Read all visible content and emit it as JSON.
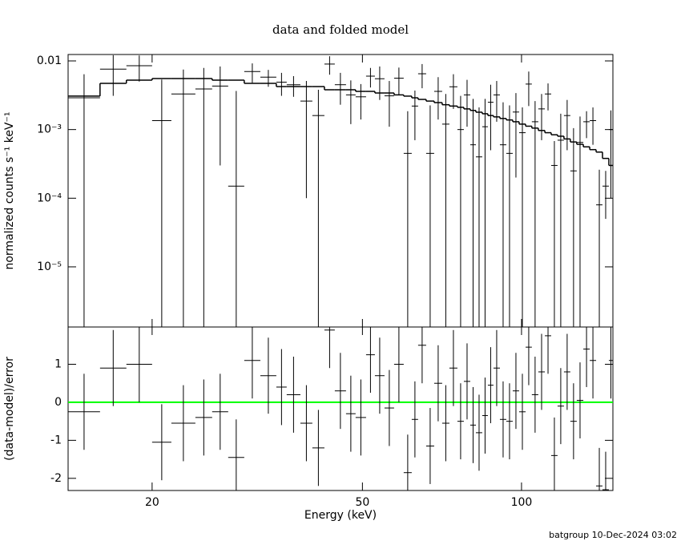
{
  "chart_data": {
    "type": "spectrum",
    "title": "data and folded model",
    "xlabel": "Energy (keV)",
    "footer": "batgroup 10-Dec-2024 03:02",
    "log_x": true,
    "xlim": [
      13.87,
      148.9
    ],
    "xticks": [
      20,
      50,
      100
    ],
    "bins": [
      13.87,
      15.94,
      17.88,
      20.0,
      21.75,
      24.15,
      25.98,
      27.86,
      29.88,
      32.05,
      34.36,
      35.95,
      38.16,
      40.2,
      42.37,
      44.33,
      46.55,
      48.54,
      50.8,
      52.79,
      55.05,
      57.4,
      59.85,
      61.98,
      63.73,
      66.0,
      68.35,
      70.77,
      73.04,
      75.63,
      77.78,
      79.99,
      81.97,
      84.28,
      86.36,
      88.5,
      91.01,
      93.59,
      96.24,
      98.96,
      101.8,
      104.6,
      107.6,
      110.7,
      113.8,
      117.0,
      120.3,
      123.7,
      127.2,
      130.9,
      134.6,
      138.4,
      142.3,
      146.3,
      148.9
    ],
    "panels": [
      {
        "kind": "spectrum",
        "ylabel": "normalized counts s⁻¹ keV⁻¹",
        "log_y": true,
        "ylim": [
          1.33e-06,
          0.0124
        ],
        "yticks": [
          0.01,
          {
            "value": 0.001,
            "label": "10⁻³"
          },
          {
            "value": 0.0001,
            "label": "10⁻⁴"
          },
          {
            "value": 1e-05,
            "label": "10⁻⁵"
          }
        ],
        "data": {
          "color": "#000000",
          "values": [
            0.0029,
            0.0076,
            0.0085,
            0.00135,
            0.0033,
            0.0039,
            0.0043,
            0.00015,
            0.007,
            0.0058,
            0.0049,
            0.0045,
            0.0026,
            0.0016,
            0.009,
            0.0045,
            0.0032,
            0.003,
            0.006,
            0.0055,
            0.0031,
            0.0056,
            0.00045,
            0.0022,
            0.0065,
            0.00045,
            0.0036,
            0.0012,
            0.0042,
            0.001,
            0.0032,
            0.0006,
            0.0004,
            0.0011,
            0.0025,
            0.0032,
            0.0006,
            0.00045,
            0.0018,
            0.0009,
            0.0046,
            0.0013,
            0.002,
            0.0033,
            0.0003,
            0.0007,
            0.0016,
            0.00025,
            0.00065,
            0.0013,
            0.00135,
            8e-05,
            0.00015,
            0.001
          ],
          "errors": [
            0.0035,
            0.0045,
            0.0035,
            0.004,
            0.0042,
            0.004,
            0.004,
            0.0035,
            0.0022,
            0.0016,
            0.0018,
            0.0015,
            0.0025,
            0.0022,
            0.0027,
            0.0022,
            0.002,
            0.0016,
            0.0019,
            0.0028,
            0.002,
            0.0024,
            0.0014,
            0.0015,
            0.0025,
            0.0018,
            0.0022,
            0.0021,
            0.0022,
            0.0021,
            0.0021,
            0.0022,
            0.0017,
            0.0017,
            0.002,
            0.0019,
            0.0019,
            0.0018,
            0.0016,
            0.0012,
            0.0024,
            0.0013,
            0.0013,
            0.0014,
            0.00038,
            0.001,
            0.0011,
            0.0008,
            0.0009,
            0.00055,
            0.00075,
            0.00018,
            0.0001,
            0.0009
          ]
        },
        "model": {
          "color": "#000000",
          "values": [
            0.00307,
            0.00471,
            0.00525,
            0.00554,
            0.00554,
            0.00554,
            0.00525,
            0.00525,
            0.00471,
            0.00471,
            0.00423,
            0.00423,
            0.00423,
            0.00423,
            0.0038,
            0.0038,
            0.0038,
            0.0036,
            0.0036,
            0.00341,
            0.00341,
            0.0032,
            0.00307,
            0.0029,
            0.00275,
            0.0026,
            0.00247,
            0.0023,
            0.0022,
            0.00211,
            0.002,
            0.0019,
            0.00179,
            0.0017,
            0.0016,
            0.00153,
            0.00145,
            0.00138,
            0.0013,
            0.0012,
            0.00112,
            0.00105,
            0.00097,
            0.0009,
            0.00084,
            0.0008,
            0.00073,
            0.00066,
            0.00061,
            0.00056,
            0.00051,
            0.00047,
            0.00038,
            0.0003
          ]
        }
      },
      {
        "kind": "residual",
        "ylabel": "(data-model)/error",
        "log_y": false,
        "ylim": [
          -2.32,
          1.98
        ],
        "yticks": [
          -2,
          -1,
          0,
          1
        ],
        "reference": {
          "value": 0,
          "color": "#00ff00"
        },
        "data": {
          "color": "#000000",
          "values": [
            -0.25,
            0.9,
            1.0,
            -1.05,
            -0.55,
            -0.4,
            -0.25,
            -1.45,
            1.1,
            0.7,
            0.4,
            0.2,
            -0.55,
            -1.2,
            1.9,
            0.3,
            -0.3,
            -0.4,
            1.25,
            0.7,
            -0.15,
            1.0,
            -1.85,
            -0.45,
            1.5,
            -1.15,
            0.5,
            -0.55,
            0.9,
            -0.5,
            0.55,
            -0.6,
            -0.8,
            -0.35,
            0.45,
            0.9,
            -0.45,
            -0.5,
            0.3,
            -0.25,
            1.45,
            0.2,
            0.8,
            1.75,
            -1.4,
            -0.1,
            0.8,
            -0.5,
            0.05,
            1.4,
            1.1,
            -2.2,
            -2.3,
            1.1
          ],
          "errors": [
            1,
            1,
            1,
            1,
            1,
            1,
            1,
            1,
            1,
            1,
            1,
            1,
            1,
            1,
            1,
            1,
            1,
            1,
            1,
            1,
            1,
            1,
            1,
            1,
            1,
            1,
            1,
            1,
            1,
            1,
            1,
            1,
            1,
            1,
            1,
            1,
            1,
            1,
            1,
            1,
            1,
            1,
            1,
            1,
            1,
            1,
            1,
            1,
            1,
            1,
            1,
            1,
            1,
            1
          ]
        }
      }
    ]
  }
}
